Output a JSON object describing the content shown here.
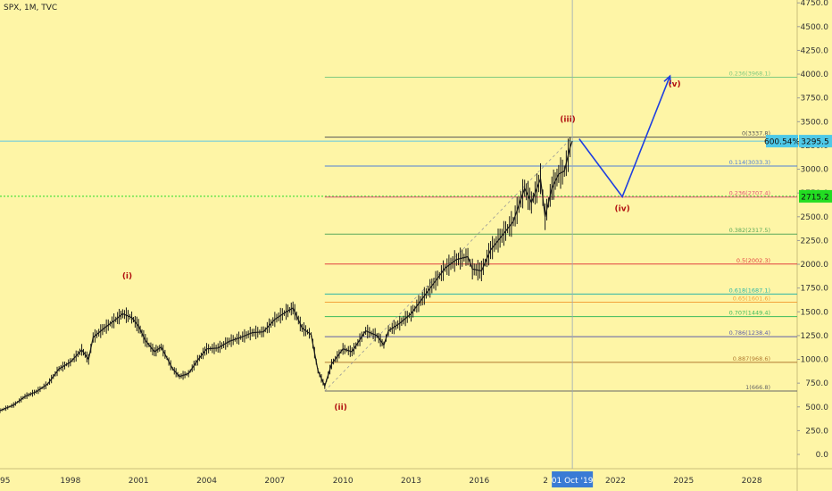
{
  "header": {
    "symbol": "SPX, 1M, TVC"
  },
  "chart_data": {
    "type": "line",
    "title": "SPX, 1M, TVC",
    "yticks": [
      0,
      250,
      500,
      750,
      1000,
      1250,
      1500,
      1750,
      2000,
      2250,
      2500,
      2750,
      3000,
      3250,
      3500,
      3750,
      4000,
      4250,
      4500,
      4750
    ],
    "ytick_labels": [
      "0.0",
      "250.0",
      "500.0",
      "750.0",
      "1000.0",
      "1250.0",
      "1500.0",
      "1750.0",
      "2000.0",
      "2250.0",
      "2500.0",
      "2750.0",
      "3000.0",
      "3250.0",
      "3500.0",
      "3750.0",
      "4000.0",
      "4250.0",
      "4500.0",
      "4750.0"
    ],
    "ylim": [
      -150,
      4780
    ],
    "xlim": [
      1994.9,
      2030.0
    ],
    "xticks": [
      1998,
      2001,
      2004,
      2007,
      2010,
      2013,
      2016,
      2022,
      2025,
      2028
    ],
    "xtick_labels": [
      "1998",
      "2001",
      "2004",
      "2007",
      "2010",
      "2013",
      "2016",
      "2022",
      "2025",
      "2028"
    ],
    "x_edge_labels": {
      "left": "95",
      "right_partial": "2"
    },
    "price_series": [
      [
        1994.9,
        460
      ],
      [
        1995.5,
        520
      ],
      [
        1996.0,
        610
      ],
      [
        1996.5,
        660
      ],
      [
        1997.0,
        740
      ],
      [
        1997.5,
        900
      ],
      [
        1998.0,
        970
      ],
      [
        1998.5,
        1100
      ],
      [
        1998.8,
        1000
      ],
      [
        1999.0,
        1230
      ],
      [
        1999.5,
        1330
      ],
      [
        2000.0,
        1420
      ],
      [
        2000.3,
        1480
      ],
      [
        2000.7,
        1440
      ],
      [
        2001.0,
        1350
      ],
      [
        2001.3,
        1200
      ],
      [
        2001.7,
        1080
      ],
      [
        2002.0,
        1130
      ],
      [
        2002.5,
        900
      ],
      [
        2002.8,
        820
      ],
      [
        2003.2,
        850
      ],
      [
        2003.6,
        990
      ],
      [
        2004.0,
        1110
      ],
      [
        2004.5,
        1120
      ],
      [
        2005.0,
        1190
      ],
      [
        2005.5,
        1230
      ],
      [
        2006.0,
        1280
      ],
      [
        2006.5,
        1290
      ],
      [
        2007.0,
        1420
      ],
      [
        2007.5,
        1500
      ],
      [
        2007.8,
        1540
      ],
      [
        2008.2,
        1330
      ],
      [
        2008.6,
        1260
      ],
      [
        2008.9,
        880
      ],
      [
        2009.2,
        720
      ],
      [
        2009.5,
        950
      ],
      [
        2010.0,
        1110
      ],
      [
        2010.4,
        1080
      ],
      [
        2011.0,
        1300
      ],
      [
        2011.5,
        1250
      ],
      [
        2011.8,
        1150
      ],
      [
        2012.0,
        1300
      ],
      [
        2012.5,
        1380
      ],
      [
        2013.0,
        1480
      ],
      [
        2013.5,
        1640
      ],
      [
        2014.0,
        1800
      ],
      [
        2014.5,
        1960
      ],
      [
        2015.0,
        2050
      ],
      [
        2015.5,
        2080
      ],
      [
        2015.7,
        1950
      ],
      [
        2016.1,
        1930
      ],
      [
        2016.5,
        2150
      ],
      [
        2017.0,
        2300
      ],
      [
        2017.5,
        2450
      ],
      [
        2018.0,
        2800
      ],
      [
        2018.3,
        2650
      ],
      [
        2018.7,
        2900
      ],
      [
        2018.9,
        2500
      ],
      [
        2019.2,
        2800
      ],
      [
        2019.5,
        2950
      ],
      [
        2019.75,
        2980
      ],
      [
        2020.0,
        3230
      ],
      [
        2020.1,
        3295
      ]
    ],
    "fib_levels": [
      {
        "label": "0.236(3968.1)",
        "price": 3968.1,
        "color": "#7fc97f"
      },
      {
        "label": "0(3337.8)",
        "price": 3337.8,
        "color": "#555555"
      },
      {
        "label": "0.114(3033.3)",
        "price": 3033.3,
        "color": "#4f7fd6"
      },
      {
        "label": "0.236(2707.4)",
        "price": 2707.4,
        "color": "#e0557a"
      },
      {
        "label": "0.382(2317.5)",
        "price": 2317.5,
        "color": "#5aa85a"
      },
      {
        "label": "0.5(2002.3)",
        "price": 2002.3,
        "color": "#e04040"
      },
      {
        "label": "0.618(1687.1)",
        "price": 1687.1,
        "color": "#2bb5a5"
      },
      {
        "label": "0.65(1601.6)",
        "price": 1601.6,
        "color": "#f2a23a"
      },
      {
        "label": "0.707(1449.4)",
        "price": 1449.4,
        "color": "#3cba5c"
      },
      {
        "label": "0.786(1238.4)",
        "price": 1238.4,
        "color": "#5c5ca8"
      },
      {
        "label": "0.887(968.6)",
        "price": 968.6,
        "color": "#b07a30"
      },
      {
        "label": "1(666.8)",
        "price": 666.8,
        "color": "#666666"
      }
    ],
    "fib_x_start": 2009.2,
    "trendline": [
      [
        2009.2,
        666.8
      ],
      [
        2020.1,
        3337.8
      ]
    ],
    "wave_labels": [
      {
        "label": "(i)",
        "x": 2000.5,
        "price": 1850
      },
      {
        "label": "(ii)",
        "x": 2009.9,
        "price": 470
      },
      {
        "label": "(iii)",
        "x": 2019.9,
        "price": 3500
      },
      {
        "label": "(iv)",
        "x": 2022.3,
        "price": 2560
      },
      {
        "label": "(v)",
        "x": 2024.6,
        "price": 3870
      }
    ],
    "projection_path": [
      [
        2020.4,
        3320
      ],
      [
        2022.3,
        2710
      ],
      [
        2024.4,
        3980
      ]
    ],
    "badges": {
      "percent": "600.54%",
      "current_price": "3295.5",
      "support_price": "2715.2",
      "cursor_date": "01 Oct '19"
    },
    "current_price": 3295.5,
    "support_price": 2715.2,
    "cursor_x": 2020.1,
    "colors": {
      "background": "#fef5a6",
      "price": "#1a1a1a",
      "projection": "#1f3fe0",
      "wave_label": "#b11010",
      "current_line": "#61c7e3",
      "support_line": "#22dd22",
      "badge_current": "#4ec9e8",
      "badge_support": "#22dd22",
      "cursor_badge": "#3a7bd5"
    }
  }
}
